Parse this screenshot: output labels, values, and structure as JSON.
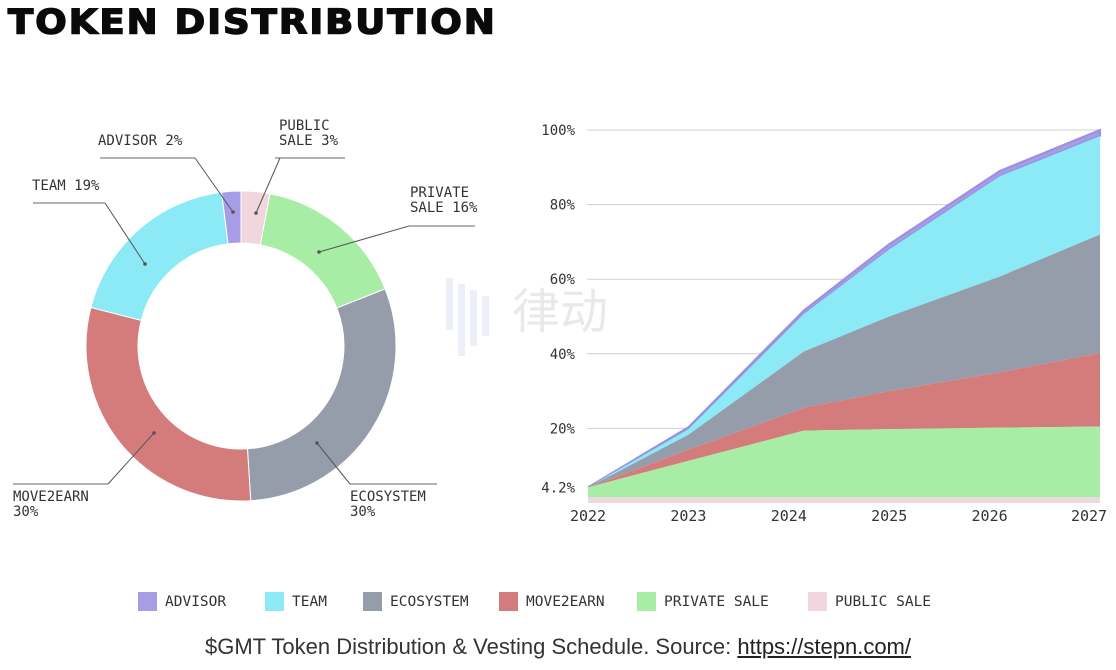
{
  "title": "TOKEN DISTRIBUTION",
  "watermark": "律动 BLOCKBEATS",
  "caption": {
    "text": "$GMT Token Distribution & Vesting Schedule. Source: ",
    "link": "https://stepn.com/"
  },
  "colors": {
    "advisor": "#a79ce6",
    "team": "#8ce9f6",
    "ecosystem": "#959daa",
    "move2earn": "#d47c7c",
    "private_sale": "#a8eda5",
    "public_sale": "#f1d7dd"
  },
  "legend": [
    {
      "key": "advisor",
      "label": "ADVISOR"
    },
    {
      "key": "team",
      "label": "TEAM"
    },
    {
      "key": "ecosystem",
      "label": "ECOSYSTEM"
    },
    {
      "key": "move2earn",
      "label": "MOVE2EARN"
    },
    {
      "key": "private_sale",
      "label": "PRIVATE SALE"
    },
    {
      "key": "public_sale",
      "label": "PUBLIC SALE"
    }
  ],
  "chart_data": [
    {
      "type": "pie",
      "variant": "donut",
      "start": "top, clockwise",
      "slices": [
        {
          "key": "public_sale",
          "label_lines": [
            "PUBLIC",
            "SALE 3%"
          ],
          "value": 3
        },
        {
          "key": "private_sale",
          "label_lines": [
            "PRIVATE",
            "SALE 16%"
          ],
          "value": 16
        },
        {
          "key": "ecosystem",
          "label_lines": [
            "ECOSYSTEM",
            "30%"
          ],
          "value": 30
        },
        {
          "key": "move2earn",
          "label_lines": [
            "MOVE2EARN",
            "30%"
          ],
          "value": 30
        },
        {
          "key": "team",
          "label_lines": [
            "TEAM 19%"
          ],
          "value": 19
        },
        {
          "key": "advisor",
          "label_lines": [
            "ADVISOR 2%"
          ],
          "value": 2
        }
      ]
    },
    {
      "type": "area",
      "stacked": true,
      "x": [
        2022,
        2023,
        2024.15,
        2025,
        2026.1,
        2027.1
      ],
      "x_ticks": [
        "2022",
        "2023",
        "2024",
        "2025",
        "2026",
        "2027"
      ],
      "x_tick_values": [
        2022,
        2023,
        2024,
        2025,
        2026,
        2027
      ],
      "y_ticks": [
        "4.2%",
        "20%",
        "40%",
        "60%",
        "80%",
        "100%"
      ],
      "y_tick_values": [
        4.2,
        20,
        40,
        60,
        80,
        100
      ],
      "ylim": [
        0,
        100
      ],
      "grid": "horizontal",
      "series_cumulative_tops": [
        {
          "key": "public_sale",
          "values": [
            1.5,
            1.5,
            1.5,
            1.5,
            1.5,
            1.5
          ]
        },
        {
          "key": "private_sale",
          "values": [
            4.2,
            11.3,
            19.4,
            19.8,
            20.2,
            20.5
          ]
        },
        {
          "key": "move2earn",
          "values": [
            4.2,
            14.3,
            25.5,
            30,
            35,
            40.2
          ]
        },
        {
          "key": "ecosystem",
          "values": [
            4.2,
            18.3,
            40.6,
            50,
            60.7,
            72
          ]
        },
        {
          "key": "team",
          "values": [
            4.2,
            19.8,
            50.7,
            68,
            87.6,
            98.4
          ]
        },
        {
          "key": "advisor",
          "values": [
            4.2,
            20.3,
            51.6,
            69.4,
            89,
            100
          ]
        }
      ]
    }
  ]
}
